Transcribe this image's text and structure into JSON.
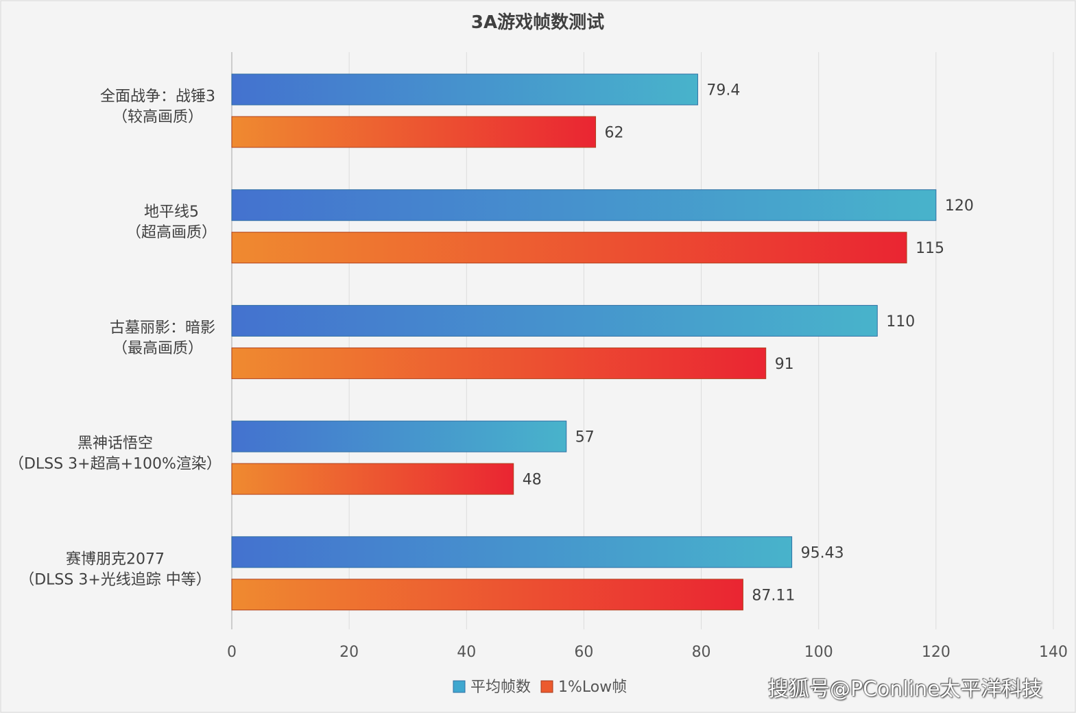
{
  "chart_data": {
    "type": "bar",
    "orientation": "horizontal",
    "title": "3A游戏帧数测试",
    "categories": [
      [
        "全面战争：战锤3",
        "（较高画质）"
      ],
      [
        "地平线5",
        "（超高画质）"
      ],
      [
        "古墓丽影：暗影",
        "（最高画质）"
      ],
      [
        "黑神话悟空",
        "（DLSS 3+超高+100%渲染）"
      ],
      [
        "赛博朋克2077",
        "（DLSS 3+光线追踪 中等）"
      ]
    ],
    "series": [
      {
        "name": "平均帧数",
        "values": [
          79.4,
          120,
          110,
          57,
          95.43
        ],
        "labels": [
          "79.4",
          "120",
          "110",
          "57",
          "95.43"
        ],
        "color_start": "#4472cf",
        "color_end": "#48b3cb",
        "legend_color": "#3fa7cf"
      },
      {
        "name": "1%Low帧",
        "values": [
          62,
          115,
          91,
          48,
          87.11
        ],
        "labels": [
          "62",
          "115",
          "91",
          "48",
          "87.11"
        ],
        "color_start": "#ef8a30",
        "color_end": "#ea2532",
        "legend_color": "#ec5a2e"
      }
    ],
    "xlim": [
      0,
      140
    ],
    "xticks": [
      0,
      20,
      40,
      60,
      80,
      100,
      120,
      140
    ],
    "grid": true,
    "legend_position": "bottom"
  },
  "watermark": "搜狐号@PConline太平洋科技"
}
